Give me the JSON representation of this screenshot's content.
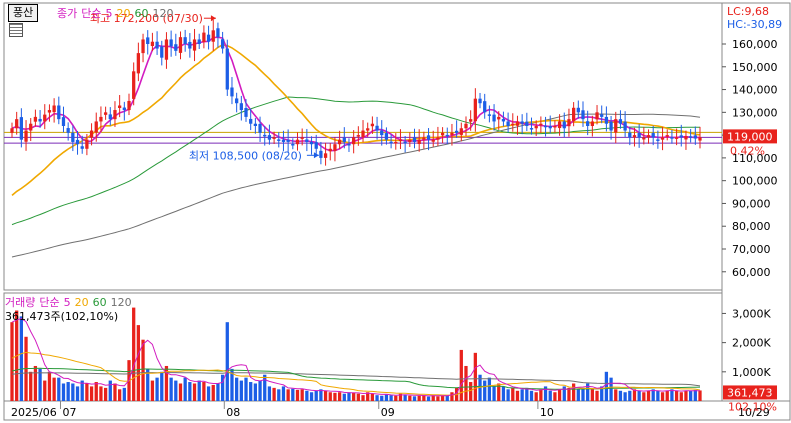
{
  "stock": {
    "name": "풍산",
    "lc_label": "LC:9,68",
    "hc_label": "HC:-30,89",
    "current_price": "119,000",
    "change_pct": "0.42%",
    "max_label": "최고 172,200 (07/30)",
    "min_label": "최저 108,500 (08/20)"
  },
  "price_legend": {
    "type_label": "종가",
    "method_label": "단순",
    "periods": [
      "5",
      "20",
      "60",
      "120"
    ]
  },
  "volume_legend": {
    "type_label": "거래량",
    "method_label": "단순",
    "periods": [
      "5",
      "20",
      "60",
      "120"
    ],
    "current_label": "361,473주(102,10%)",
    "current_volume": "361,473",
    "current_pct": "102,10%"
  },
  "colors": {
    "up": "#e8221c",
    "down": "#1c5ee6",
    "ma5": "#d21cc0",
    "ma20": "#f0a800",
    "ma60": "#2a9a3a",
    "ma120": "#707070",
    "current_line": "#7a2bb8",
    "reference_line": "#c8a000"
  },
  "chart_data": {
    "type": "candlestick",
    "price_axis": {
      "ylim": [
        52000,
        178000
      ],
      "ticks": [
        "160,000",
        "150,000",
        "140,000",
        "130,000",
        "120,000",
        "110,000",
        "100,000",
        "90,000",
        "80,000",
        "70,000",
        "60,000"
      ],
      "tick_values": [
        160000,
        150000,
        140000,
        130000,
        120000,
        110000,
        100000,
        90000,
        80000,
        70000,
        60000
      ]
    },
    "volume_axis": {
      "ylim": [
        0,
        3700000
      ],
      "ticks": [
        "3,000K",
        "2,000K",
        "1,000K"
      ],
      "tick_values": [
        3000000,
        2000000,
        1000000
      ]
    },
    "x_axis_labels": [
      {
        "label": "2025/06",
        "index": 0
      },
      {
        "label": "07",
        "index": 11
      },
      {
        "label": "08",
        "index": 46
      },
      {
        "label": "09",
        "index": 79
      },
      {
        "label": "10",
        "index": 113
      },
      {
        "label": "10/29",
        "index": 148
      }
    ],
    "max_point": {
      "index": 44,
      "value": 172200
    },
    "min_point": {
      "index": 66,
      "value": 108500
    },
    "closes": [
      123000,
      127000,
      118000,
      122000,
      125000,
      128000,
      126000,
      129000,
      131000,
      133000,
      127000,
      124000,
      121000,
      117000,
      116000,
      114000,
      118000,
      122000,
      126000,
      128000,
      130000,
      127000,
      131000,
      133000,
      131000,
      135000,
      148000,
      156000,
      162000,
      160000,
      161000,
      158000,
      154000,
      162000,
      159000,
      157000,
      163000,
      160000,
      158000,
      162000,
      160000,
      165000,
      161000,
      166000,
      163000,
      158000,
      140000,
      137000,
      134000,
      131000,
      128000,
      125000,
      124000,
      121000,
      120000,
      118000,
      119000,
      118000,
      117000,
      117000,
      116000,
      118000,
      119000,
      117000,
      116000,
      114000,
      110000,
      112000,
      114000,
      116000,
      118000,
      117000,
      116000,
      119000,
      120000,
      122000,
      123000,
      125000,
      122000,
      120000,
      118000,
      117000,
      117000,
      118000,
      117000,
      118000,
      117000,
      118000,
      119000,
      118000,
      118000,
      119000,
      121000,
      120000,
      121000,
      121000,
      123000,
      125000,
      127000,
      136000,
      134000,
      130000,
      129000,
      126000,
      128000,
      126000,
      124000,
      125000,
      126000,
      125000,
      124000,
      123000,
      124000,
      125000,
      124000,
      123000,
      124000,
      126000,
      123000,
      127000,
      132000,
      130000,
      127000,
      124000,
      126000,
      130000,
      128000,
      125000,
      122000,
      127000,
      125000,
      122000,
      119000,
      120000,
      119000,
      119000,
      120000,
      119000,
      118000,
      119000,
      120000,
      119000,
      119000,
      119000,
      119500,
      119000,
      118500,
      119000
    ],
    "volumes": [
      2700000,
      3100000,
      2900000,
      2200000,
      1000000,
      1200000,
      1100000,
      700000,
      1000000,
      800000,
      800000,
      600000,
      650000,
      600000,
      500000,
      700000,
      600000,
      500000,
      650000,
      500000,
      450000,
      700000,
      600000,
      400000,
      450000,
      1400000,
      3200000,
      2600000,
      2100000,
      1100000,
      700000,
      800000,
      1000000,
      1200000,
      800000,
      700000,
      600000,
      800000,
      650000,
      600000,
      700000,
      650000,
      500000,
      550000,
      600000,
      900000,
      2700000,
      1100000,
      800000,
      700000,
      800000,
      650000,
      600000,
      700000,
      900000,
      500000,
      450000,
      400000,
      500000,
      400000,
      420000,
      380000,
      400000,
      350000,
      300000,
      350000,
      400000,
      350000,
      300000,
      280000,
      300000,
      250000,
      300000,
      280000,
      250000,
      200000,
      300000,
      250000,
      200000,
      180000,
      220000,
      200000,
      180000,
      250000,
      220000,
      180000,
      160000,
      180000,
      200000,
      150000,
      200000,
      160000,
      180000,
      200000,
      300000,
      450000,
      1750000,
      1200000,
      650000,
      1650000,
      900000,
      700000,
      800000,
      500000,
      600000,
      500000,
      400000,
      450000,
      350000,
      400000,
      450000,
      350000,
      300000,
      400000,
      500000,
      350000,
      300000,
      400000,
      500000,
      450000,
      600000,
      400000,
      450000,
      600000,
      400000,
      350000,
      500000,
      1000000,
      800000,
      400000,
      350000,
      300000,
      350000,
      400000,
      350000,
      300000,
      350000,
      400000,
      350000,
      300000,
      350000,
      400000,
      350000,
      300000,
      361473,
      350000,
      380000,
      361473
    ]
  }
}
